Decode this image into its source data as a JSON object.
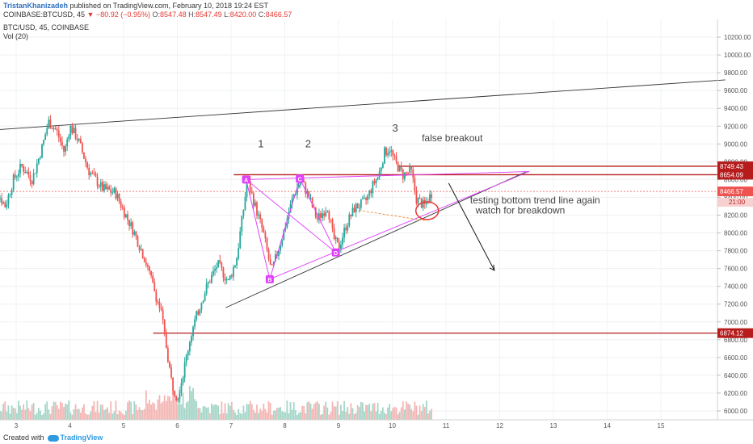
{
  "header": {
    "author": "TristanKhanizadeh",
    "published": "published on TradingView.com, February 10, 2018 19:24 EST",
    "symbol": "COINBASE:BTCUSD, 45",
    "change": "▼ −80.92 (−0.95%)",
    "open_label": "O:",
    "open": "8547.48",
    "high_label": "H:",
    "high": "8547.49",
    "low_label": "L:",
    "low": "8420.00",
    "close_label": "C:",
    "close": "8466.57",
    "last": "8466.57"
  },
  "chart_title": "BTC/USD, 45, COINBASE",
  "volume_label": "Vol (20)",
  "footer": {
    "created_with": "Created with",
    "brand": "TradingView"
  },
  "colors": {
    "up": "#26a69a",
    "down": "#ef5350",
    "pattern": "#e040fb",
    "level": "#b71c1c",
    "trend": "#333333",
    "vol_up": "#a5d6c8",
    "vol_down": "#f4b6b4"
  },
  "chart_data": {
    "type": "candlestick",
    "ylim": [
      5900,
      10400
    ],
    "y_ticks": [
      6000,
      6200,
      6400,
      6600,
      6800,
      7000,
      7200,
      7400,
      7600,
      7800,
      8000,
      8200,
      8400,
      8600,
      8800,
      9000,
      9200,
      9400,
      9600,
      9800,
      10000,
      10200
    ],
    "x_ticks": [
      "3",
      "4",
      "5",
      "6",
      "7",
      "8",
      "9",
      "10",
      "11",
      "12",
      "13",
      "14",
      "15"
    ],
    "x_range": [
      2.4,
      16.2
    ],
    "close_path": [
      {
        "x": 2.45,
        "y": 8750
      },
      {
        "x": 2.6,
        "y": 8500
      },
      {
        "x": 2.8,
        "y": 8300
      },
      {
        "x": 2.95,
        "y": 8600
      },
      {
        "x": 3.1,
        "y": 8750
      },
      {
        "x": 3.3,
        "y": 8600
      },
      {
        "x": 3.5,
        "y": 9000
      },
      {
        "x": 3.6,
        "y": 9250
      },
      {
        "x": 3.75,
        "y": 9150
      },
      {
        "x": 3.9,
        "y": 8900
      },
      {
        "x": 4.0,
        "y": 9200
      },
      {
        "x": 4.15,
        "y": 9050
      },
      {
        "x": 4.35,
        "y": 8700
      },
      {
        "x": 4.6,
        "y": 8500
      },
      {
        "x": 4.85,
        "y": 8450
      },
      {
        "x": 5.0,
        "y": 8250
      },
      {
        "x": 5.2,
        "y": 8000
      },
      {
        "x": 5.4,
        "y": 7700
      },
      {
        "x": 5.55,
        "y": 7400
      },
      {
        "x": 5.7,
        "y": 7100
      },
      {
        "x": 5.8,
        "y": 6700
      },
      {
        "x": 5.9,
        "y": 6300
      },
      {
        "x": 6.0,
        "y": 6150
      },
      {
        "x": 6.1,
        "y": 6400
      },
      {
        "x": 6.25,
        "y": 6850
      },
      {
        "x": 6.4,
        "y": 7150
      },
      {
        "x": 6.55,
        "y": 7400
      },
      {
        "x": 6.75,
        "y": 7650
      },
      {
        "x": 6.95,
        "y": 7450
      },
      {
        "x": 7.1,
        "y": 7700
      },
      {
        "x": 7.25,
        "y": 8350
      },
      {
        "x": 7.3,
        "y": 8600
      },
      {
        "x": 7.45,
        "y": 8300
      },
      {
        "x": 7.6,
        "y": 8000
      },
      {
        "x": 7.75,
        "y": 7560
      },
      {
        "x": 7.95,
        "y": 7950
      },
      {
        "x": 8.15,
        "y": 8400
      },
      {
        "x": 8.3,
        "y": 8600
      },
      {
        "x": 8.45,
        "y": 8400
      },
      {
        "x": 8.6,
        "y": 8150
      },
      {
        "x": 8.8,
        "y": 8300
      },
      {
        "x": 8.9,
        "y": 7950
      },
      {
        "x": 9.0,
        "y": 7830
      },
      {
        "x": 9.15,
        "y": 8100
      },
      {
        "x": 9.3,
        "y": 8280
      },
      {
        "x": 9.5,
        "y": 8350
      },
      {
        "x": 9.65,
        "y": 8550
      },
      {
        "x": 9.75,
        "y": 8650
      },
      {
        "x": 9.85,
        "y": 8900
      },
      {
        "x": 9.95,
        "y": 8950
      },
      {
        "x": 10.05,
        "y": 8800
      },
      {
        "x": 10.2,
        "y": 8650
      },
      {
        "x": 10.35,
        "y": 8700
      },
      {
        "x": 10.45,
        "y": 8380
      },
      {
        "x": 10.6,
        "y": 8300
      },
      {
        "x": 10.75,
        "y": 8466
      }
    ],
    "levels": [
      {
        "value": 8749.43,
        "label": "8749.43"
      },
      {
        "value": 8654.09,
        "label": "8654.09"
      },
      {
        "value": 6874.12,
        "label": "6874.12"
      }
    ],
    "price_label": "8466.57",
    "countdown_label": "21:00",
    "pattern_points": [
      {
        "label": "A",
        "x": 7.28,
        "y": 8600
      },
      {
        "label": "B",
        "x": 7.72,
        "y": 7480
      },
      {
        "label": "C",
        "x": 8.28,
        "y": 8610
      },
      {
        "label": "D",
        "x": 8.95,
        "y": 7780
      }
    ],
    "annotations": [
      {
        "text": "1",
        "x": 7.5,
        "y": 8960
      },
      {
        "text": "2",
        "x": 8.38,
        "y": 8960
      },
      {
        "text": "3",
        "x": 10.0,
        "y": 9140
      },
      {
        "text": "false breakout",
        "x": 10.55,
        "y": 9030
      },
      {
        "text": "testing bottom trend line again",
        "x": 11.45,
        "y": 8330
      },
      {
        "text": "watch for breakdown",
        "x": 11.55,
        "y": 8220
      }
    ]
  }
}
